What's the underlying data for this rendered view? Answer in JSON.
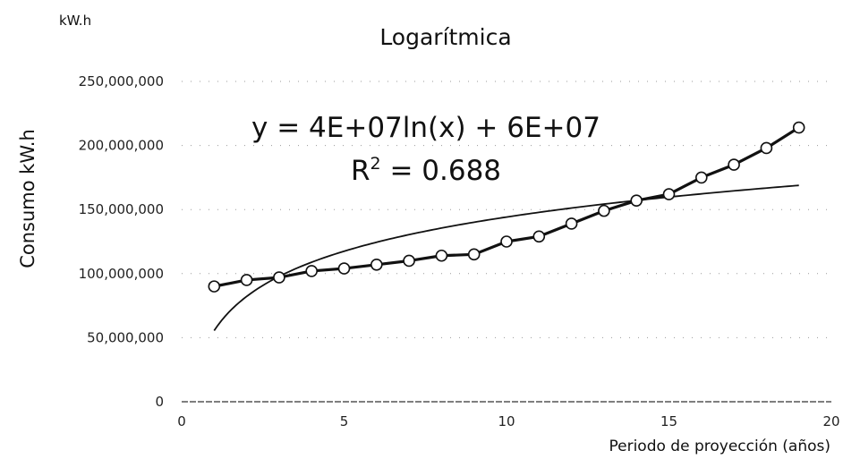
{
  "chart_data": {
    "type": "scatter",
    "title": "Logarítmica",
    "unit": "kW.h",
    "xlabel": "Periodo de proyección (años)",
    "ylabel": "Consumo kW.h",
    "xlim": [
      0,
      20
    ],
    "ylim": [
      0,
      250000000
    ],
    "x_ticks": [
      0,
      5,
      10,
      15,
      20
    ],
    "x_tick_labels": [
      "0",
      "5",
      "10",
      "15",
      "20"
    ],
    "y_ticks": [
      0,
      50000000,
      100000000,
      150000000,
      200000000,
      250000000
    ],
    "y_tick_labels": [
      "0",
      "50,000,000",
      "100,000,000",
      "150,000,000",
      "200,000,000",
      "250,000,000"
    ],
    "grid": true,
    "legend": "none",
    "series": [
      {
        "marker": "circle",
        "line": true,
        "color": "#111111",
        "marker_fill": "#ffffff",
        "x": [
          1,
          2,
          3,
          4,
          5,
          6,
          7,
          8,
          9,
          10,
          11,
          12,
          13,
          14,
          15,
          16,
          17,
          18,
          19
        ],
        "y": [
          90000000,
          95000000,
          97000000,
          102000000,
          104000000,
          107000000,
          110000000,
          114000000,
          115000000,
          125000000,
          129000000,
          139000000,
          149000000,
          157000000,
          162000000,
          175000000,
          185000000,
          198000000,
          214000000
        ]
      }
    ],
    "trendline": {
      "type": "logarithmic",
      "color": "#111111",
      "x_range": [
        1,
        19
      ],
      "coef_a": 38500000,
      "coef_b": 55500000
    },
    "annotations": {
      "equation": "y = 4E+07ln(x) + 6E+07",
      "r2_prefix": "R",
      "r2_sup": "2",
      "r2_suffix": " = 0.688"
    }
  }
}
